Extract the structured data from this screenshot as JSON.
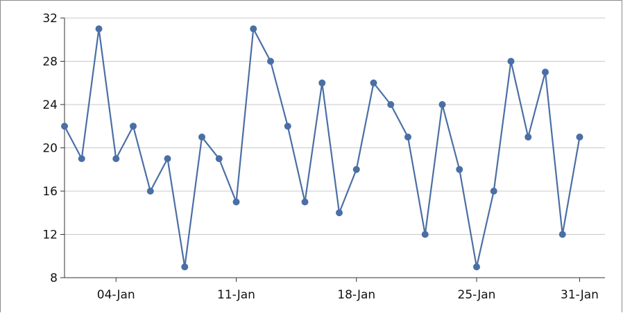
{
  "chart_data": {
    "type": "line",
    "title": "",
    "xlabel": "",
    "ylabel": "",
    "x": [
      "2021-01-01",
      "2021-01-02",
      "2021-01-03",
      "2021-01-04",
      "2021-01-05",
      "2021-01-06",
      "2021-01-07",
      "2021-01-08",
      "2021-01-09",
      "2021-01-10",
      "2021-01-11",
      "2021-01-12",
      "2021-01-13",
      "2021-01-14",
      "2021-01-15",
      "2021-01-16",
      "2021-01-17",
      "2021-01-18",
      "2021-01-19",
      "2021-01-20",
      "2021-01-21",
      "2021-01-22",
      "2021-01-23",
      "2021-01-24",
      "2021-01-25",
      "2021-01-26",
      "2021-01-27",
      "2021-01-28",
      "2021-01-29",
      "2021-01-30",
      "2021-01-31"
    ],
    "series": [
      {
        "values": [
          22,
          19,
          31,
          19,
          22,
          16,
          19,
          9,
          21,
          19,
          15,
          31,
          28,
          22,
          15,
          26,
          14,
          18,
          26,
          24,
          21,
          12,
          24,
          18,
          9,
          16,
          28,
          21,
          27,
          12,
          21
        ],
        "color": "#4a6fa5"
      }
    ],
    "ylim": [
      8,
      32
    ],
    "y_ticks": [
      "8",
      "12",
      "16",
      "20",
      "24",
      "28",
      "32"
    ],
    "x_ticks": [
      {
        "date": "2021-01-04",
        "label": "04-Jan"
      },
      {
        "date": "2021-01-11",
        "label": "11-Jan"
      },
      {
        "date": "2021-01-18",
        "label": "18-Jan"
      },
      {
        "date": "2021-01-25",
        "label": "25-Jan"
      },
      {
        "date": "2021-01-31",
        "label": "31-Jan"
      }
    ],
    "grid": true,
    "legend": "none"
  }
}
